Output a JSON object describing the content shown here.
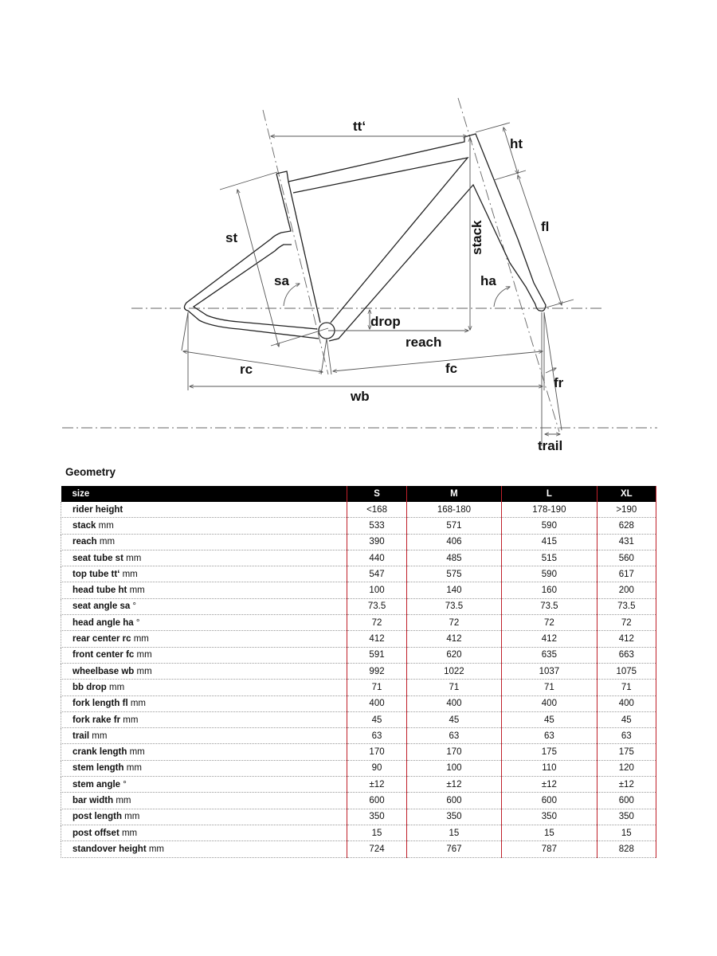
{
  "diagram": {
    "labels": {
      "tt": "tt‘",
      "ht": "ht",
      "st": "st",
      "fl": "fl",
      "stack": "stack",
      "sa": "sa",
      "ha": "ha",
      "drop": "drop",
      "reach": "reach",
      "rc": "rc",
      "fc": "fc",
      "wb": "wb",
      "fr": "fr",
      "trail": "trail"
    }
  },
  "title": "Geometry",
  "accent_color": "#c0202a",
  "table": {
    "header": [
      "size",
      "S",
      "M",
      "L",
      "XL"
    ],
    "rows": [
      {
        "name": "rider height",
        "unit": "",
        "values": [
          "<168",
          "168-180",
          "178-190",
          ">190"
        ]
      },
      {
        "name": "stack",
        "unit": " mm",
        "values": [
          "533",
          "571",
          "590",
          "628"
        ]
      },
      {
        "name": "reach",
        "unit": " mm",
        "values": [
          "390",
          "406",
          "415",
          "431"
        ]
      },
      {
        "name": "seat tube st",
        "unit": " mm",
        "values": [
          "440",
          "485",
          "515",
          "560"
        ]
      },
      {
        "name": "top tube tt‘",
        "unit": " mm",
        "values": [
          "547",
          "575",
          "590",
          "617"
        ]
      },
      {
        "name": "head tube ht",
        "unit": " mm",
        "values": [
          "100",
          "140",
          "160",
          "200"
        ]
      },
      {
        "name": "seat angle sa",
        "unit": " °",
        "values": [
          "73.5",
          "73.5",
          "73.5",
          "73.5"
        ]
      },
      {
        "name": "head angle ha",
        "unit": " °",
        "values": [
          "72",
          "72",
          "72",
          "72"
        ]
      },
      {
        "name": "rear center rc",
        "unit": " mm",
        "values": [
          "412",
          "412",
          "412",
          "412"
        ]
      },
      {
        "name": "front center fc",
        "unit": " mm",
        "values": [
          "591",
          "620",
          "635",
          "663"
        ]
      },
      {
        "name": "wheelbase wb",
        "unit": " mm",
        "values": [
          "992",
          "1022",
          "1037",
          "1075"
        ]
      },
      {
        "name": "bb drop",
        "unit": " mm",
        "values": [
          "71",
          "71",
          "71",
          "71"
        ]
      },
      {
        "name": "fork length fl",
        "unit": " mm",
        "values": [
          "400",
          "400",
          "400",
          "400"
        ]
      },
      {
        "name": "fork rake fr",
        "unit": " mm",
        "values": [
          "45",
          "45",
          "45",
          "45"
        ]
      },
      {
        "name": "trail",
        "unit": " mm",
        "values": [
          "63",
          "63",
          "63",
          "63"
        ]
      },
      {
        "name": "crank length",
        "unit": " mm",
        "values": [
          "170",
          "170",
          "175",
          "175"
        ]
      },
      {
        "name": "stem length",
        "unit": " mm",
        "values": [
          "90",
          "100",
          "110",
          "120"
        ]
      },
      {
        "name": "stem angle",
        "unit": " °",
        "values": [
          "±12",
          "±12",
          "±12",
          "±12"
        ]
      },
      {
        "name": "bar width",
        "unit": " mm",
        "values": [
          "600",
          "600",
          "600",
          "600"
        ]
      },
      {
        "name": "post length",
        "unit": " mm",
        "values": [
          "350",
          "350",
          "350",
          "350"
        ]
      },
      {
        "name": "post offset",
        "unit": " mm",
        "values": [
          "15",
          "15",
          "15",
          "15"
        ]
      },
      {
        "name": "standover height",
        "unit": " mm",
        "values": [
          "724",
          "767",
          "787",
          "828"
        ]
      }
    ]
  }
}
